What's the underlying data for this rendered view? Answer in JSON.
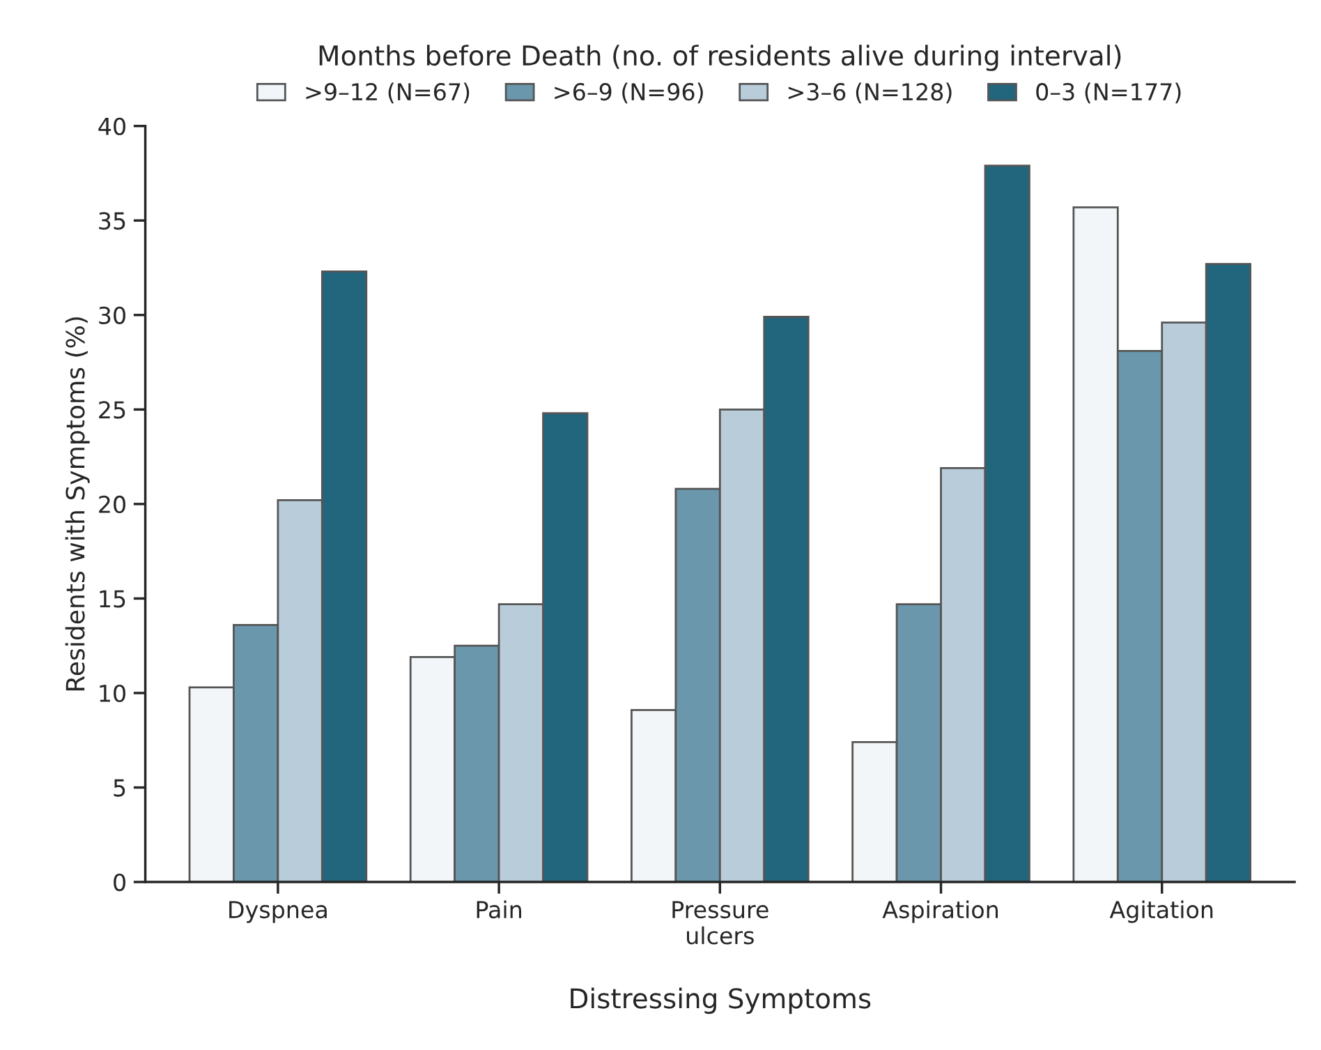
{
  "chart_data": {
    "type": "bar",
    "legend_title": "Months before Death (no. of residents alive during interval)",
    "xlabel": "Distressing Symptoms",
    "ylabel": "Residents with Symptoms (%)",
    "categories": [
      "Dyspnea",
      "Pain",
      "Pressure\nulcers",
      "Aspiration",
      "Agitation"
    ],
    "series": [
      {
        "name": ">9–12 (N=67)",
        "color": "#f2f6f8",
        "values": [
          10.3,
          11.9,
          9.1,
          7.4,
          35.7
        ]
      },
      {
        "name": ">6–9 (N=96)",
        "color": "#6a97ab",
        "values": [
          13.6,
          12.5,
          20.8,
          14.7,
          28.1
        ]
      },
      {
        "name": ">3–6 (N=128)",
        "color": "#b8cdd9",
        "values": [
          20.2,
          14.7,
          25.0,
          21.9,
          29.6
        ]
      },
      {
        "name": "0–3 (N=177)",
        "color": "#22667e",
        "values": [
          32.3,
          24.8,
          29.9,
          37.9,
          32.7
        ]
      }
    ],
    "ylim": [
      0,
      40
    ],
    "yticks": [
      0,
      5,
      10,
      15,
      20,
      25,
      30,
      35,
      40
    ],
    "grid": false,
    "legend": "top"
  }
}
